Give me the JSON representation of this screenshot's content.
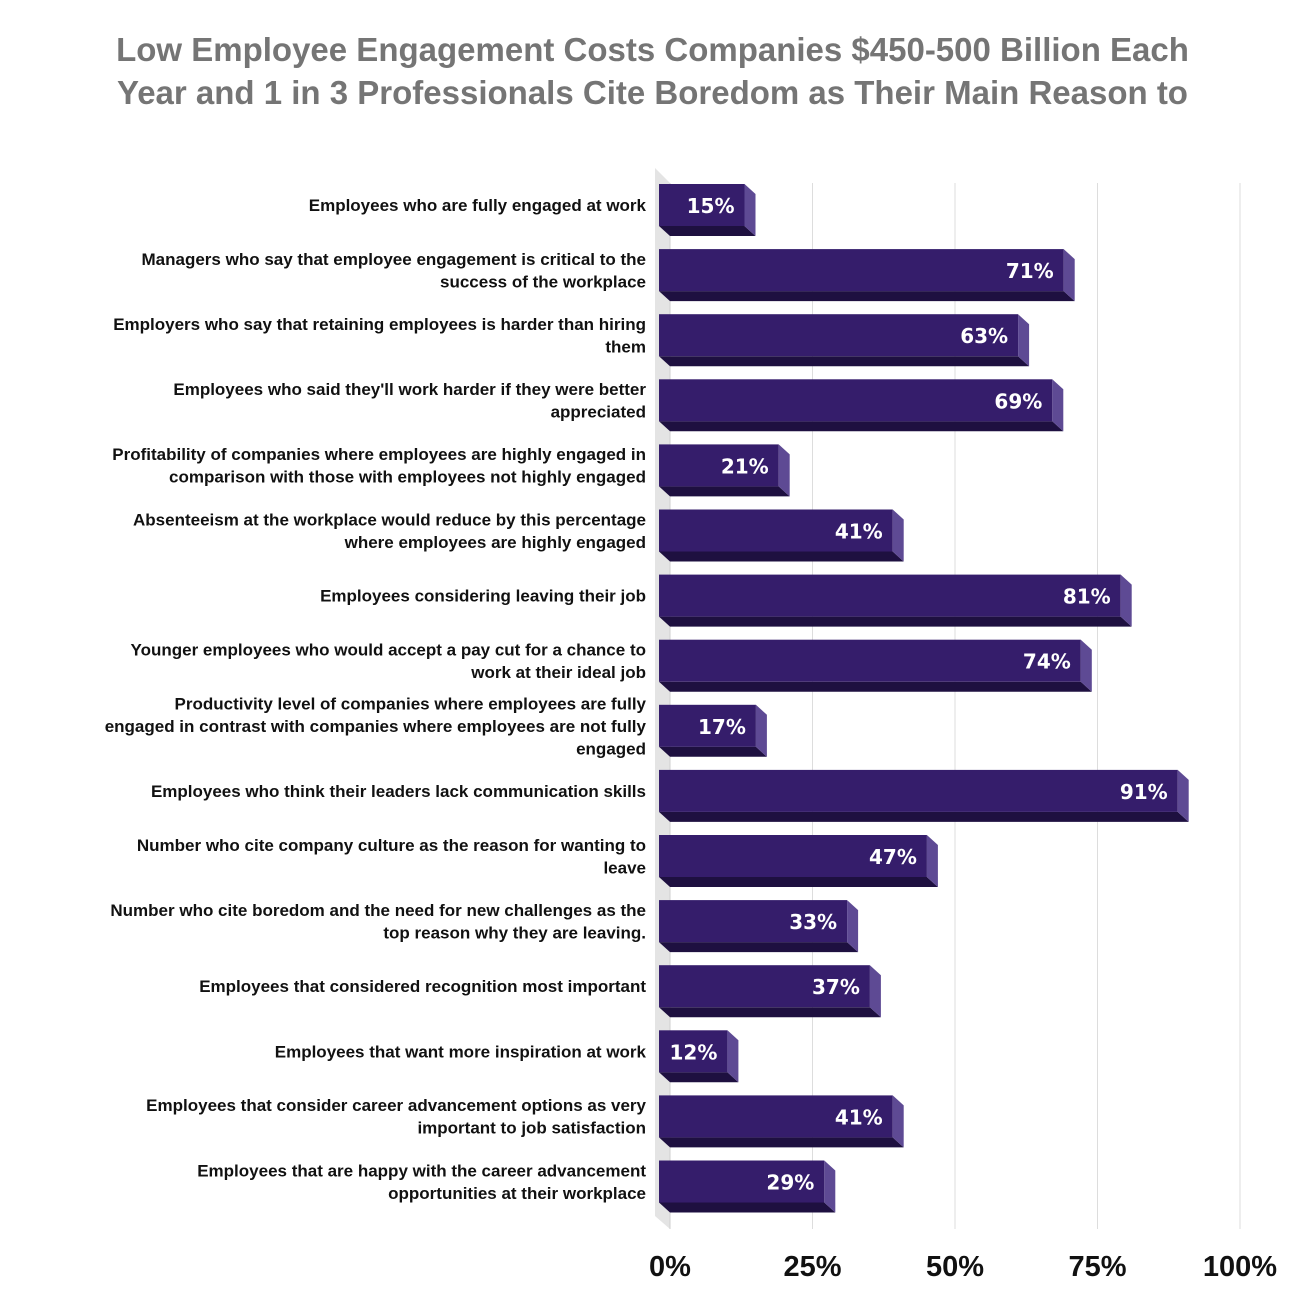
{
  "chart_data": {
    "type": "bar",
    "orientation": "horizontal",
    "title": "Low Employee Engagement Costs Companies $450-500 Billion Each Year and 1 in 3 Professionals Cite Boredom as Their Main Reason to",
    "categories": [
      "Employees who are fully engaged at work",
      "Managers who say that employee engagement is critical to the success of the workplace",
      "Employers who say that retaining employees is harder than hiring them",
      "Employees who said they'll work harder if they were better appreciated",
      "Profitability of companies where employees are highly engaged in comparison with those with employees not highly engaged",
      "Absenteeism at the workplace would reduce by this percentage where employees are highly engaged",
      "Employees considering leaving their job",
      "Younger employees who would accept a pay cut for a chance to work at their ideal job",
      "Productivity level of companies where employees are fully engaged in contrast with companies where employees are not fully engaged",
      "Employees who think their leaders lack communication skills",
      "Number who cite company culture as the reason for wanting to leave",
      "Number who cite boredom and the need for new challenges as the top reason why they are leaving.",
      "Employees that considered recognition most important",
      "Employees that want more inspiration at work",
      "Employees that consider career advancement options as very important to job satisfaction",
      "Employees that are happy with the career advancement opportunities at their workplace"
    ],
    "category_lines": [
      [
        "Employees who are fully engaged at work"
      ],
      [
        "Managers who say that employee engagement is critical to the",
        "success of the workplace"
      ],
      [
        "Employers who say that retaining employees is harder than hiring",
        "them"
      ],
      [
        "Employees who said they'll work harder if they were better",
        "appreciated"
      ],
      [
        "Profitability of companies where employees are highly engaged in",
        "comparison with those with employees not highly engaged"
      ],
      [
        "Absenteeism at the workplace would reduce by this percentage",
        "where employees are highly engaged"
      ],
      [
        "Employees considering leaving their job"
      ],
      [
        "Younger employees who would accept a pay cut for a chance to",
        "work at their ideal job"
      ],
      [
        "Productivity level of companies where employees are fully",
        "engaged in contrast with companies where employees are not fully",
        "engaged"
      ],
      [
        "Employees who think their leaders lack communication skills"
      ],
      [
        "Number who cite company culture as the reason for wanting to",
        "leave"
      ],
      [
        "Number who cite boredom and the need for new challenges as the",
        "top reason why they are leaving."
      ],
      [
        "Employees that considered recognition most important"
      ],
      [
        "Employees that want more inspiration at work"
      ],
      [
        "Employees that consider career advancement options as very",
        "important to job satisfaction"
      ],
      [
        "Employees that are happy with the career advancement",
        "opportunities at their workplace"
      ]
    ],
    "values": [
      15,
      71,
      63,
      69,
      21,
      41,
      81,
      74,
      17,
      91,
      47,
      33,
      37,
      12,
      41,
      29
    ],
    "value_labels": [
      "15%",
      "71%",
      "63%",
      "69%",
      "21%",
      "41%",
      "81%",
      "74%",
      "17%",
      "91%",
      "47%",
      "33%",
      "37%",
      "12%",
      "41%",
      "29%"
    ],
    "xlim": [
      0,
      100
    ],
    "xticks": [
      0,
      25,
      50,
      75,
      100
    ],
    "xtick_labels": [
      "0%",
      "25%",
      "50%",
      "75%",
      "100%"
    ],
    "xlabel": "",
    "ylabel": "",
    "grid": "vertical",
    "legend": "none",
    "colors": {
      "bar_front": "#351d6b",
      "bar_bottom": "#1e1040",
      "bar_side": "#5e4a94",
      "gridline": "#dddddd",
      "floor": "#e4e4e4",
      "title": "#757575"
    }
  }
}
